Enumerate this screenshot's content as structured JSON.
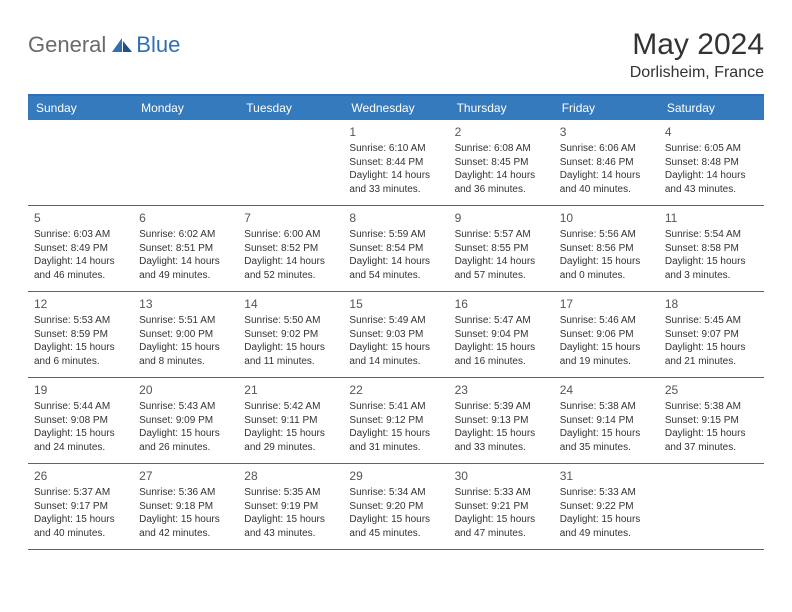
{
  "brand": {
    "part1": "General",
    "part2": "Blue"
  },
  "title": "May 2024",
  "location": "Dorlisheim, France",
  "dow": [
    "Sunday",
    "Monday",
    "Tuesday",
    "Wednesday",
    "Thursday",
    "Friday",
    "Saturday"
  ],
  "colors": {
    "header_band": "#357abd",
    "rule": "#2e6fb7",
    "text": "#333333",
    "logo_gray": "#6a6a6a",
    "logo_blue": "#2e6fb7",
    "background": "#ffffff"
  },
  "weeks": [
    [
      {
        "n": "",
        "l1": "",
        "l2": "",
        "l3": "",
        "l4": ""
      },
      {
        "n": "",
        "l1": "",
        "l2": "",
        "l3": "",
        "l4": ""
      },
      {
        "n": "",
        "l1": "",
        "l2": "",
        "l3": "",
        "l4": ""
      },
      {
        "n": "1",
        "l1": "Sunrise: 6:10 AM",
        "l2": "Sunset: 8:44 PM",
        "l3": "Daylight: 14 hours",
        "l4": "and 33 minutes."
      },
      {
        "n": "2",
        "l1": "Sunrise: 6:08 AM",
        "l2": "Sunset: 8:45 PM",
        "l3": "Daylight: 14 hours",
        "l4": "and 36 minutes."
      },
      {
        "n": "3",
        "l1": "Sunrise: 6:06 AM",
        "l2": "Sunset: 8:46 PM",
        "l3": "Daylight: 14 hours",
        "l4": "and 40 minutes."
      },
      {
        "n": "4",
        "l1": "Sunrise: 6:05 AM",
        "l2": "Sunset: 8:48 PM",
        "l3": "Daylight: 14 hours",
        "l4": "and 43 minutes."
      }
    ],
    [
      {
        "n": "5",
        "l1": "Sunrise: 6:03 AM",
        "l2": "Sunset: 8:49 PM",
        "l3": "Daylight: 14 hours",
        "l4": "and 46 minutes."
      },
      {
        "n": "6",
        "l1": "Sunrise: 6:02 AM",
        "l2": "Sunset: 8:51 PM",
        "l3": "Daylight: 14 hours",
        "l4": "and 49 minutes."
      },
      {
        "n": "7",
        "l1": "Sunrise: 6:00 AM",
        "l2": "Sunset: 8:52 PM",
        "l3": "Daylight: 14 hours",
        "l4": "and 52 minutes."
      },
      {
        "n": "8",
        "l1": "Sunrise: 5:59 AM",
        "l2": "Sunset: 8:54 PM",
        "l3": "Daylight: 14 hours",
        "l4": "and 54 minutes."
      },
      {
        "n": "9",
        "l1": "Sunrise: 5:57 AM",
        "l2": "Sunset: 8:55 PM",
        "l3": "Daylight: 14 hours",
        "l4": "and 57 minutes."
      },
      {
        "n": "10",
        "l1": "Sunrise: 5:56 AM",
        "l2": "Sunset: 8:56 PM",
        "l3": "Daylight: 15 hours",
        "l4": "and 0 minutes."
      },
      {
        "n": "11",
        "l1": "Sunrise: 5:54 AM",
        "l2": "Sunset: 8:58 PM",
        "l3": "Daylight: 15 hours",
        "l4": "and 3 minutes."
      }
    ],
    [
      {
        "n": "12",
        "l1": "Sunrise: 5:53 AM",
        "l2": "Sunset: 8:59 PM",
        "l3": "Daylight: 15 hours",
        "l4": "and 6 minutes."
      },
      {
        "n": "13",
        "l1": "Sunrise: 5:51 AM",
        "l2": "Sunset: 9:00 PM",
        "l3": "Daylight: 15 hours",
        "l4": "and 8 minutes."
      },
      {
        "n": "14",
        "l1": "Sunrise: 5:50 AM",
        "l2": "Sunset: 9:02 PM",
        "l3": "Daylight: 15 hours",
        "l4": "and 11 minutes."
      },
      {
        "n": "15",
        "l1": "Sunrise: 5:49 AM",
        "l2": "Sunset: 9:03 PM",
        "l3": "Daylight: 15 hours",
        "l4": "and 14 minutes."
      },
      {
        "n": "16",
        "l1": "Sunrise: 5:47 AM",
        "l2": "Sunset: 9:04 PM",
        "l3": "Daylight: 15 hours",
        "l4": "and 16 minutes."
      },
      {
        "n": "17",
        "l1": "Sunrise: 5:46 AM",
        "l2": "Sunset: 9:06 PM",
        "l3": "Daylight: 15 hours",
        "l4": "and 19 minutes."
      },
      {
        "n": "18",
        "l1": "Sunrise: 5:45 AM",
        "l2": "Sunset: 9:07 PM",
        "l3": "Daylight: 15 hours",
        "l4": "and 21 minutes."
      }
    ],
    [
      {
        "n": "19",
        "l1": "Sunrise: 5:44 AM",
        "l2": "Sunset: 9:08 PM",
        "l3": "Daylight: 15 hours",
        "l4": "and 24 minutes."
      },
      {
        "n": "20",
        "l1": "Sunrise: 5:43 AM",
        "l2": "Sunset: 9:09 PM",
        "l3": "Daylight: 15 hours",
        "l4": "and 26 minutes."
      },
      {
        "n": "21",
        "l1": "Sunrise: 5:42 AM",
        "l2": "Sunset: 9:11 PM",
        "l3": "Daylight: 15 hours",
        "l4": "and 29 minutes."
      },
      {
        "n": "22",
        "l1": "Sunrise: 5:41 AM",
        "l2": "Sunset: 9:12 PM",
        "l3": "Daylight: 15 hours",
        "l4": "and 31 minutes."
      },
      {
        "n": "23",
        "l1": "Sunrise: 5:39 AM",
        "l2": "Sunset: 9:13 PM",
        "l3": "Daylight: 15 hours",
        "l4": "and 33 minutes."
      },
      {
        "n": "24",
        "l1": "Sunrise: 5:38 AM",
        "l2": "Sunset: 9:14 PM",
        "l3": "Daylight: 15 hours",
        "l4": "and 35 minutes."
      },
      {
        "n": "25",
        "l1": "Sunrise: 5:38 AM",
        "l2": "Sunset: 9:15 PM",
        "l3": "Daylight: 15 hours",
        "l4": "and 37 minutes."
      }
    ],
    [
      {
        "n": "26",
        "l1": "Sunrise: 5:37 AM",
        "l2": "Sunset: 9:17 PM",
        "l3": "Daylight: 15 hours",
        "l4": "and 40 minutes."
      },
      {
        "n": "27",
        "l1": "Sunrise: 5:36 AM",
        "l2": "Sunset: 9:18 PM",
        "l3": "Daylight: 15 hours",
        "l4": "and 42 minutes."
      },
      {
        "n": "28",
        "l1": "Sunrise: 5:35 AM",
        "l2": "Sunset: 9:19 PM",
        "l3": "Daylight: 15 hours",
        "l4": "and 43 minutes."
      },
      {
        "n": "29",
        "l1": "Sunrise: 5:34 AM",
        "l2": "Sunset: 9:20 PM",
        "l3": "Daylight: 15 hours",
        "l4": "and 45 minutes."
      },
      {
        "n": "30",
        "l1": "Sunrise: 5:33 AM",
        "l2": "Sunset: 9:21 PM",
        "l3": "Daylight: 15 hours",
        "l4": "and 47 minutes."
      },
      {
        "n": "31",
        "l1": "Sunrise: 5:33 AM",
        "l2": "Sunset: 9:22 PM",
        "l3": "Daylight: 15 hours",
        "l4": "and 49 minutes."
      },
      {
        "n": "",
        "l1": "",
        "l2": "",
        "l3": "",
        "l4": ""
      }
    ]
  ]
}
